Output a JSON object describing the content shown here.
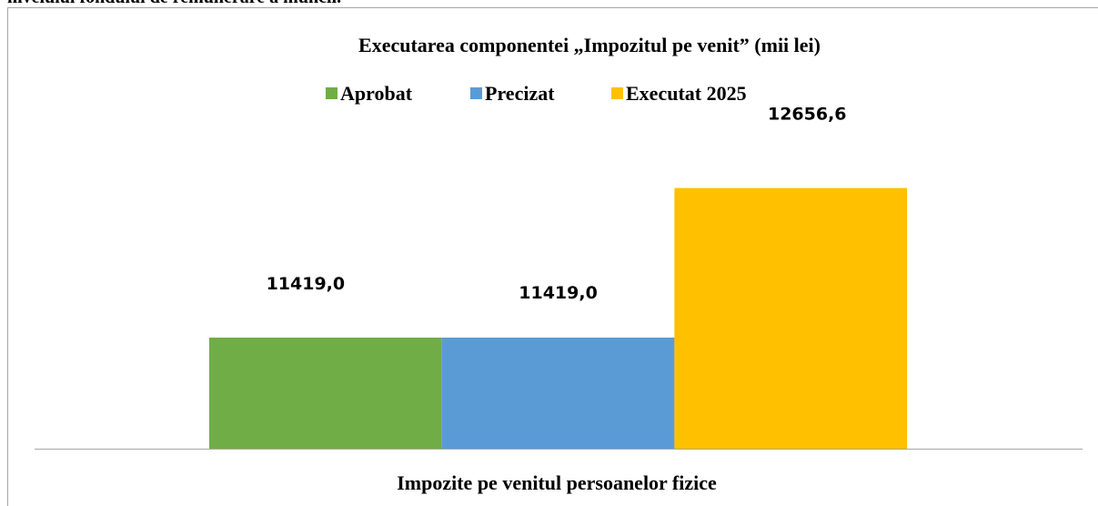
{
  "document_text": "nivelului fondului de remunerare a muncii.",
  "chart_data": {
    "type": "bar",
    "title": "Executarea componentei „Impozitul pe venit” (mii lei)",
    "categories": [
      "Impozite pe venitul persoanelor fizice"
    ],
    "series": [
      {
        "name": "Aprobat",
        "color": "#70ad47",
        "values": [
          11419.0
        ],
        "value_labels": [
          "11419,0"
        ]
      },
      {
        "name": "Precizat",
        "color": "#5b9bd5",
        "values": [
          11419.0
        ],
        "value_labels": [
          "11419,0"
        ]
      },
      {
        "name": "Executat 2025",
        "color": "#ffc000",
        "values": [
          12656.6
        ],
        "value_labels": [
          "12656,6"
        ]
      }
    ],
    "ylim": [
      10500,
      13000
    ],
    "legend": "top"
  }
}
